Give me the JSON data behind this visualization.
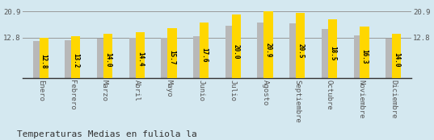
{
  "categories": [
    "Enero",
    "Febrero",
    "Marzo",
    "Abril",
    "Mayo",
    "Junio",
    "Julio",
    "Agosto",
    "Septiembre",
    "Octubre",
    "Noviembre",
    "Diciembre"
  ],
  "values": [
    12.8,
    13.2,
    14.0,
    14.4,
    15.7,
    17.6,
    20.0,
    20.9,
    20.5,
    18.5,
    16.3,
    14.0
  ],
  "gray_values": [
    11.8,
    12.0,
    12.5,
    12.7,
    12.8,
    13.2,
    16.5,
    17.5,
    17.2,
    15.5,
    13.5,
    12.5
  ],
  "bar_color_yellow": "#FFD700",
  "bar_color_gray": "#B8B8B8",
  "background_color": "#D4E8F0",
  "title": "Temperaturas Medias en fuliola la",
  "title_fontsize": 8.0,
  "ymin": 0,
  "ymax": 23.5,
  "yticks": [
    12.8,
    20.9
  ],
  "value_fontsize": 5.5,
  "tick_fontsize": 6.5,
  "label_color": "#555555"
}
